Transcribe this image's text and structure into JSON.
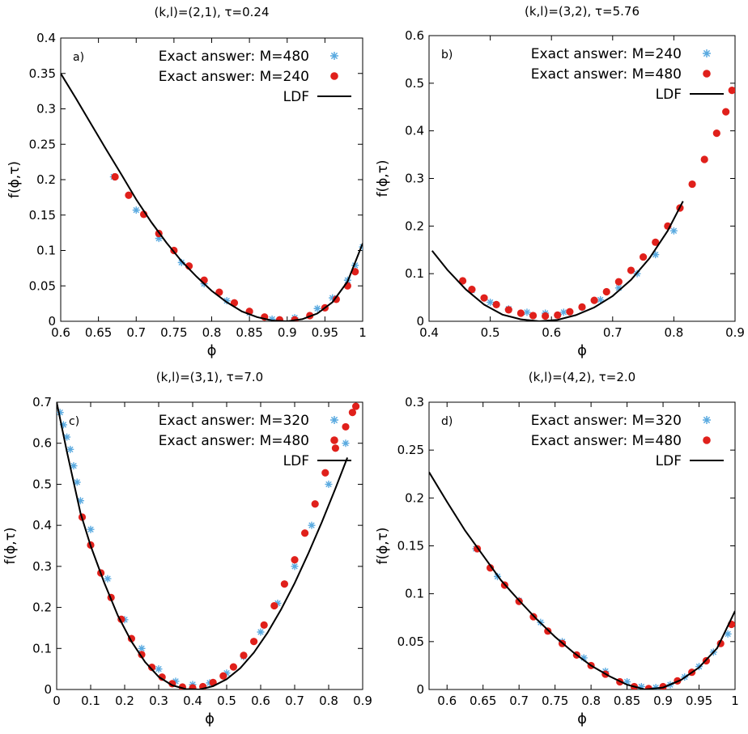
{
  "chart_data": [
    {
      "type": "scatter",
      "panel_label": "a)",
      "title": "(k,l)=(2,1), τ=0.24",
      "xlabel": "ϕ",
      "ylabel": "f(ϕ,τ)",
      "xlim": [
        0.6,
        1.0
      ],
      "ylim": [
        0,
        0.4
      ],
      "xticks": [
        0.6,
        0.65,
        0.7,
        0.75,
        0.8,
        0.85,
        0.9,
        0.95,
        1
      ],
      "xtick_labels": [
        "0.6",
        "0.65",
        "0.7",
        "0.75",
        "0.8",
        "0.85",
        "0.9",
        "0.95",
        "1"
      ],
      "yticks": [
        0,
        0.05,
        0.1,
        0.15,
        0.2,
        0.25,
        0.3,
        0.35,
        0.4
      ],
      "ytick_labels": [
        "0",
        "0.05",
        "0.1",
        "0.15",
        "0.2",
        "0.25",
        "0.3",
        "0.35",
        "0.4"
      ],
      "legend_position": "top-right",
      "grid": false,
      "series": [
        {
          "name": "Exact answer: M=480",
          "kind": "stars",
          "color": "#5aaae0",
          "x": [
            0.67,
            0.7,
            0.73,
            0.76,
            0.79,
            0.82,
            0.85,
            0.88,
            0.89,
            0.91,
            0.94,
            0.96,
            0.98,
            0.99,
            1.0
          ],
          "y": [
            0.204,
            0.157,
            0.117,
            0.083,
            0.053,
            0.029,
            0.012,
            0.003,
            0.002,
            0.005,
            0.018,
            0.033,
            0.058,
            0.079,
            0.105
          ]
        },
        {
          "name": "Exact answer: M=240",
          "kind": "dots",
          "color": "#e0201b",
          "x": [
            0.672,
            0.69,
            0.71,
            0.73,
            0.75,
            0.77,
            0.79,
            0.81,
            0.83,
            0.85,
            0.87,
            0.89,
            0.91,
            0.93,
            0.95,
            0.965,
            0.98,
            0.99
          ],
          "y": [
            0.204,
            0.178,
            0.151,
            0.124,
            0.1,
            0.078,
            0.058,
            0.041,
            0.026,
            0.014,
            0.006,
            0.002,
            0.002,
            0.008,
            0.019,
            0.031,
            0.05,
            0.07
          ]
        },
        {
          "name": "LDF",
          "kind": "line",
          "color": "#000000",
          "x": [
            0.6,
            0.62,
            0.64,
            0.66,
            0.68,
            0.7,
            0.72,
            0.74,
            0.76,
            0.78,
            0.8,
            0.82,
            0.84,
            0.86,
            0.88,
            0.9,
            0.92,
            0.94,
            0.96,
            0.98,
            1.0
          ],
          "y": [
            0.35,
            0.315,
            0.279,
            0.243,
            0.208,
            0.172,
            0.14,
            0.111,
            0.085,
            0.063,
            0.043,
            0.027,
            0.014,
            0.006,
            0.001,
            0.0,
            0.003,
            0.011,
            0.027,
            0.056,
            0.11
          ]
        }
      ]
    },
    {
      "type": "scatter",
      "panel_label": "b)",
      "title": "(k,l)=(3,2), τ=5.76",
      "xlabel": "ϕ",
      "ylabel": "f(ϕ,τ)",
      "xlim": [
        0.4,
        0.9
      ],
      "ylim": [
        0,
        0.6
      ],
      "xticks": [
        0.4,
        0.5,
        0.6,
        0.7,
        0.8,
        0.9
      ],
      "xtick_labels": [
        "0.4",
        "0.5",
        "0.6",
        "0.7",
        "0.8",
        "0.9"
      ],
      "yticks": [
        0,
        0.1,
        0.2,
        0.3,
        0.4,
        0.5,
        0.6
      ],
      "ytick_labels": [
        "0",
        "0.1",
        "0.2",
        "0.3",
        "0.4",
        "0.5",
        "0.6"
      ],
      "legend_position": "top-right",
      "grid": false,
      "series": [
        {
          "name": "Exact answer: M=240",
          "kind": "stars",
          "color": "#5aaae0",
          "x": [
            0.47,
            0.5,
            0.53,
            0.56,
            0.59,
            0.62,
            0.65,
            0.68,
            0.71,
            0.74,
            0.77,
            0.8
          ],
          "y": [
            0.065,
            0.04,
            0.026,
            0.019,
            0.017,
            0.019,
            0.029,
            0.045,
            0.07,
            0.1,
            0.14,
            0.19
          ]
        },
        {
          "name": "Exact answer: M=480",
          "kind": "dots",
          "color": "#e0201b",
          "x": [
            0.455,
            0.47,
            0.49,
            0.51,
            0.53,
            0.55,
            0.57,
            0.59,
            0.61,
            0.63,
            0.65,
            0.67,
            0.69,
            0.71,
            0.73,
            0.75,
            0.77,
            0.79,
            0.81,
            0.83,
            0.85,
            0.87,
            0.885,
            0.895
          ],
          "y": [
            0.085,
            0.067,
            0.049,
            0.035,
            0.024,
            0.017,
            0.012,
            0.011,
            0.013,
            0.02,
            0.03,
            0.044,
            0.062,
            0.083,
            0.107,
            0.135,
            0.166,
            0.2,
            0.238,
            0.288,
            0.34,
            0.395,
            0.44,
            0.485
          ]
        },
        {
          "name": "LDF",
          "kind": "line",
          "color": "#000000",
          "x": [
            0.405,
            0.43,
            0.46,
            0.49,
            0.52,
            0.55,
            0.58,
            0.61,
            0.64,
            0.67,
            0.7,
            0.73,
            0.76,
            0.79,
            0.815
          ],
          "y": [
            0.148,
            0.108,
            0.067,
            0.035,
            0.014,
            0.004,
            0.0,
            0.003,
            0.013,
            0.029,
            0.053,
            0.087,
            0.132,
            0.19,
            0.252
          ]
        }
      ]
    },
    {
      "type": "scatter",
      "panel_label": "c)",
      "title": "(k,l)=(3,1), τ=7.0",
      "xlabel": "ϕ",
      "ylabel": "f(ϕ,τ)",
      "xlim": [
        0,
        0.9
      ],
      "ylim": [
        0,
        0.7
      ],
      "xticks": [
        0,
        0.1,
        0.2,
        0.3,
        0.4,
        0.5,
        0.6,
        0.7,
        0.8,
        0.9
      ],
      "xtick_labels": [
        "0",
        "0.1",
        "0.2",
        "0.3",
        "0.4",
        "0.5",
        "0.6",
        "0.7",
        "0.8",
        "0.9"
      ],
      "yticks": [
        0,
        0.1,
        0.2,
        0.3,
        0.4,
        0.5,
        0.6,
        0.7
      ],
      "ytick_labels": [
        "0",
        "0.1",
        "0.2",
        "0.3",
        "0.4",
        "0.5",
        "0.6",
        "0.7"
      ],
      "legend_position": "top-right",
      "grid": false,
      "series": [
        {
          "name": "Exact answer: M=320",
          "kind": "stars",
          "color": "#5aaae0",
          "x": [
            0.01,
            0.02,
            0.03,
            0.04,
            0.05,
            0.06,
            0.07,
            0.1,
            0.15,
            0.2,
            0.25,
            0.3,
            0.35,
            0.4,
            0.45,
            0.5,
            0.55,
            0.6,
            0.65,
            0.7,
            0.75,
            0.8,
            0.85
          ],
          "y": [
            0.675,
            0.645,
            0.615,
            0.585,
            0.545,
            0.505,
            0.46,
            0.39,
            0.27,
            0.17,
            0.1,
            0.05,
            0.02,
            0.012,
            0.016,
            0.04,
            0.08,
            0.14,
            0.21,
            0.3,
            0.4,
            0.5,
            0.6
          ]
        },
        {
          "name": "Exact answer: M=480",
          "kind": "dots",
          "color": "#e0201b",
          "x": [
            0.075,
            0.1,
            0.13,
            0.16,
            0.19,
            0.22,
            0.25,
            0.28,
            0.31,
            0.34,
            0.37,
            0.4,
            0.43,
            0.46,
            0.49,
            0.52,
            0.55,
            0.58,
            0.61,
            0.64,
            0.67,
            0.7,
            0.73,
            0.76,
            0.79,
            0.82,
            0.85,
            0.87,
            0.88
          ],
          "y": [
            0.42,
            0.352,
            0.284,
            0.224,
            0.171,
            0.124,
            0.085,
            0.054,
            0.03,
            0.014,
            0.006,
            0.004,
            0.007,
            0.017,
            0.033,
            0.055,
            0.083,
            0.117,
            0.157,
            0.204,
            0.257,
            0.316,
            0.381,
            0.452,
            0.528,
            0.588,
            0.64,
            0.675,
            0.69
          ]
        },
        {
          "name": "LDF",
          "kind": "line",
          "color": "#000000",
          "x": [
            0.0,
            0.03,
            0.07,
            0.1,
            0.14,
            0.18,
            0.22,
            0.26,
            0.3,
            0.34,
            0.38,
            0.42,
            0.46,
            0.5,
            0.54,
            0.58,
            0.62,
            0.66,
            0.7,
            0.74,
            0.78,
            0.82,
            0.855
          ],
          "y": [
            0.7,
            0.58,
            0.43,
            0.35,
            0.26,
            0.18,
            0.117,
            0.067,
            0.031,
            0.01,
            0.001,
            0.0,
            0.008,
            0.025,
            0.052,
            0.09,
            0.138,
            0.195,
            0.259,
            0.331,
            0.408,
            0.49,
            0.565
          ]
        }
      ]
    },
    {
      "type": "scatter",
      "panel_label": "d)",
      "title": "(k,l)=(4,2), τ=2.0",
      "xlabel": "ϕ",
      "ylabel": "f(ϕ,τ)",
      "xlim": [
        0.575,
        1.0
      ],
      "ylim": [
        0,
        0.3
      ],
      "xticks": [
        0.6,
        0.65,
        0.7,
        0.75,
        0.8,
        0.85,
        0.9,
        0.95,
        1
      ],
      "xtick_labels": [
        "0.6",
        "0.65",
        "0.7",
        "0.75",
        "0.8",
        "0.85",
        "0.9",
        "0.95",
        "1"
      ],
      "yticks": [
        0,
        0.05,
        0.1,
        0.15,
        0.2,
        0.25,
        0.3
      ],
      "ytick_labels": [
        "0",
        "0.05",
        "0.1",
        "0.15",
        "0.2",
        "0.25",
        "0.3"
      ],
      "legend_position": "top-right",
      "grid": false,
      "series": [
        {
          "name": "Exact answer: M=320",
          "kind": "stars",
          "color": "#5aaae0",
          "x": [
            0.64,
            0.67,
            0.7,
            0.73,
            0.76,
            0.79,
            0.82,
            0.85,
            0.87,
            0.89,
            0.91,
            0.93,
            0.95,
            0.97,
            0.99
          ],
          "y": [
            0.147,
            0.118,
            0.093,
            0.07,
            0.05,
            0.033,
            0.019,
            0.008,
            0.003,
            0.002,
            0.005,
            0.013,
            0.024,
            0.039,
            0.058
          ]
        },
        {
          "name": "Exact answer: M=480",
          "kind": "dots",
          "color": "#e0201b",
          "x": [
            0.642,
            0.66,
            0.68,
            0.7,
            0.72,
            0.74,
            0.76,
            0.78,
            0.8,
            0.82,
            0.84,
            0.86,
            0.88,
            0.9,
            0.92,
            0.94,
            0.96,
            0.98,
            0.995
          ],
          "y": [
            0.147,
            0.127,
            0.109,
            0.092,
            0.076,
            0.061,
            0.048,
            0.036,
            0.025,
            0.016,
            0.008,
            0.003,
            0.001,
            0.003,
            0.009,
            0.018,
            0.03,
            0.048,
            0.068
          ]
        },
        {
          "name": "LDF",
          "kind": "line",
          "color": "#000000",
          "x": [
            0.575,
            0.6,
            0.625,
            0.65,
            0.675,
            0.7,
            0.725,
            0.75,
            0.775,
            0.8,
            0.825,
            0.85,
            0.875,
            0.9,
            0.925,
            0.95,
            0.975,
            1.0
          ],
          "y": [
            0.227,
            0.196,
            0.166,
            0.14,
            0.114,
            0.093,
            0.073,
            0.055,
            0.039,
            0.025,
            0.014,
            0.005,
            0.0,
            0.002,
            0.01,
            0.023,
            0.043,
            0.082
          ]
        }
      ]
    }
  ]
}
